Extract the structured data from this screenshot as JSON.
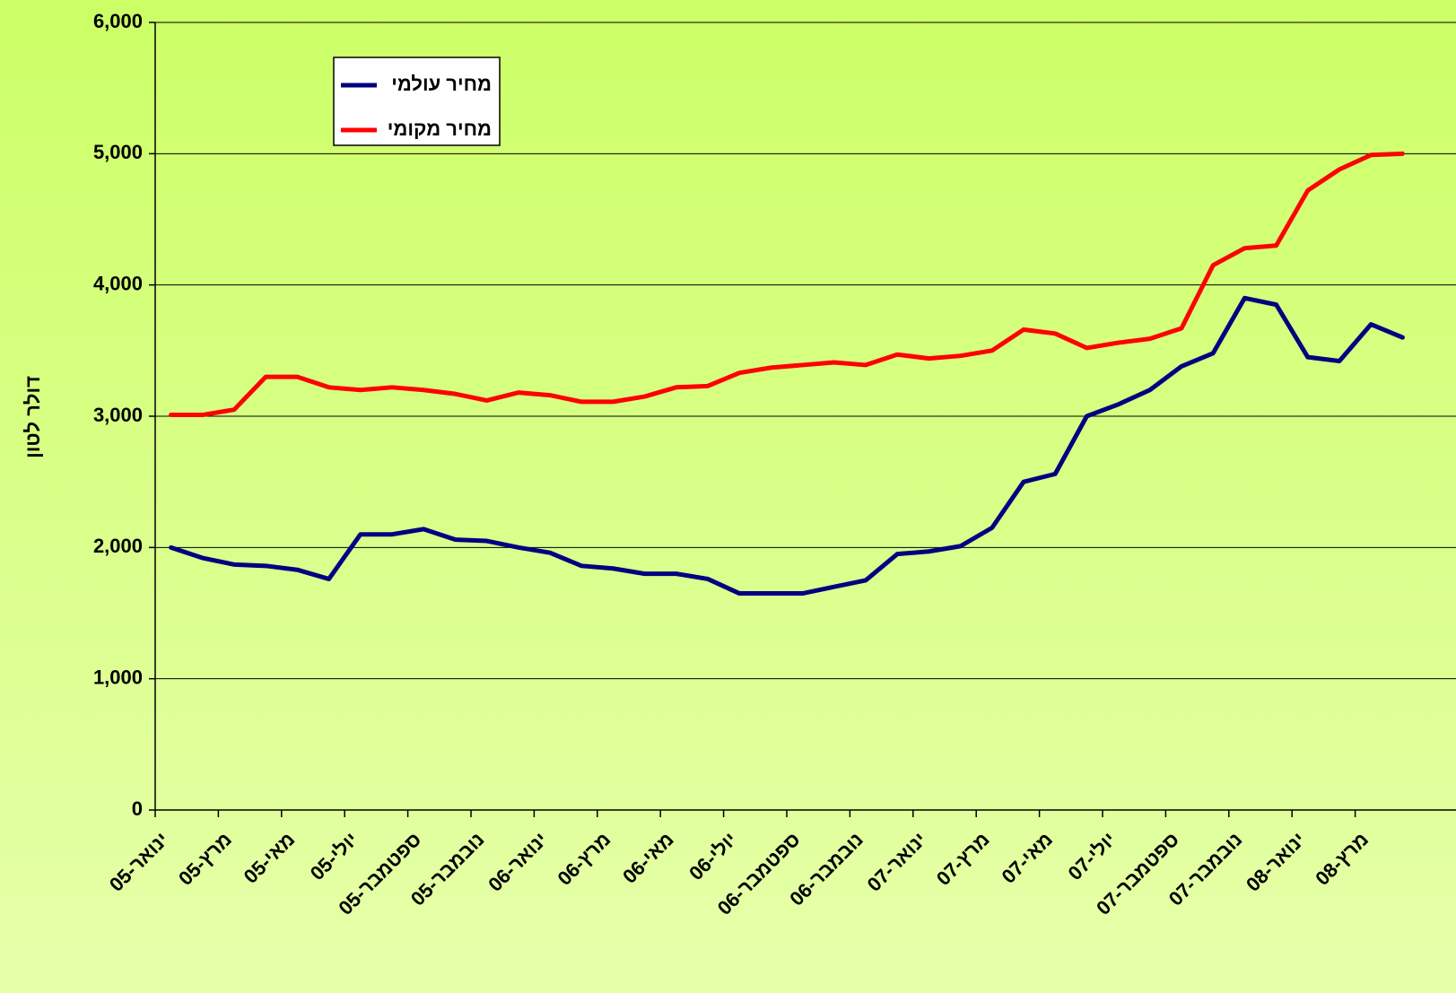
{
  "chart_data": {
    "type": "line",
    "y_label": "דולר לטון",
    "categories": [
      "ינואר-05",
      null,
      "מרץ-05",
      null,
      "מאי-05",
      null,
      "יולי-05",
      null,
      "ספטמבר-05",
      null,
      "נובמבר-05",
      null,
      "ינואר-06",
      null,
      "מרץ-06",
      null,
      "מאי-06",
      null,
      "יולי-06",
      null,
      "ספטמבר-06",
      null,
      "נובמבר-06",
      null,
      "ינואר-07",
      null,
      "מרץ-07",
      null,
      "מאי-07",
      null,
      "יולי-07",
      null,
      "ספטמבר-07",
      null,
      "נובמבר-07",
      null,
      "ינואר-08",
      null,
      "מרץ-08",
      null
    ],
    "series": [
      {
        "name": "מחיר עולמי",
        "color": "#000080",
        "values": [
          2000,
          1920,
          1870,
          1860,
          1830,
          1760,
          2100,
          2100,
          2140,
          2060,
          2050,
          2000,
          1960,
          1860,
          1840,
          1800,
          1800,
          1760,
          1650,
          1650,
          1650,
          1700,
          1750,
          1950,
          1970,
          2010,
          2150,
          2500,
          2560,
          3000,
          3090,
          3200,
          3380,
          3480,
          3900,
          3850,
          3450,
          3420,
          3700,
          3600
        ]
      },
      {
        "name": "מחיר מקומי",
        "color": "#ff0000",
        "values": [
          3010,
          3010,
          3050,
          3300,
          3300,
          3220,
          3200,
          3220,
          3200,
          3170,
          3120,
          3180,
          3160,
          3110,
          3110,
          3150,
          3220,
          3230,
          3330,
          3370,
          3390,
          3410,
          3390,
          3470,
          3440,
          3460,
          3500,
          3660,
          3630,
          3520,
          3560,
          3590,
          3670,
          4150,
          4280,
          4300,
          4720,
          4880,
          4990,
          5000
        ]
      }
    ],
    "ylim": [
      0,
      6000
    ],
    "yticks": [
      0,
      {
        "value": 1000,
        "label": "1,000"
      },
      {
        "value": 2000,
        "label": "2,000"
      },
      {
        "value": 3000,
        "label": "3,000"
      },
      {
        "value": 4000,
        "label": "4,000"
      },
      {
        "value": 5000,
        "label": "5,000"
      },
      {
        "value": 6000,
        "label": "6,000"
      }
    ],
    "grid": true
  }
}
